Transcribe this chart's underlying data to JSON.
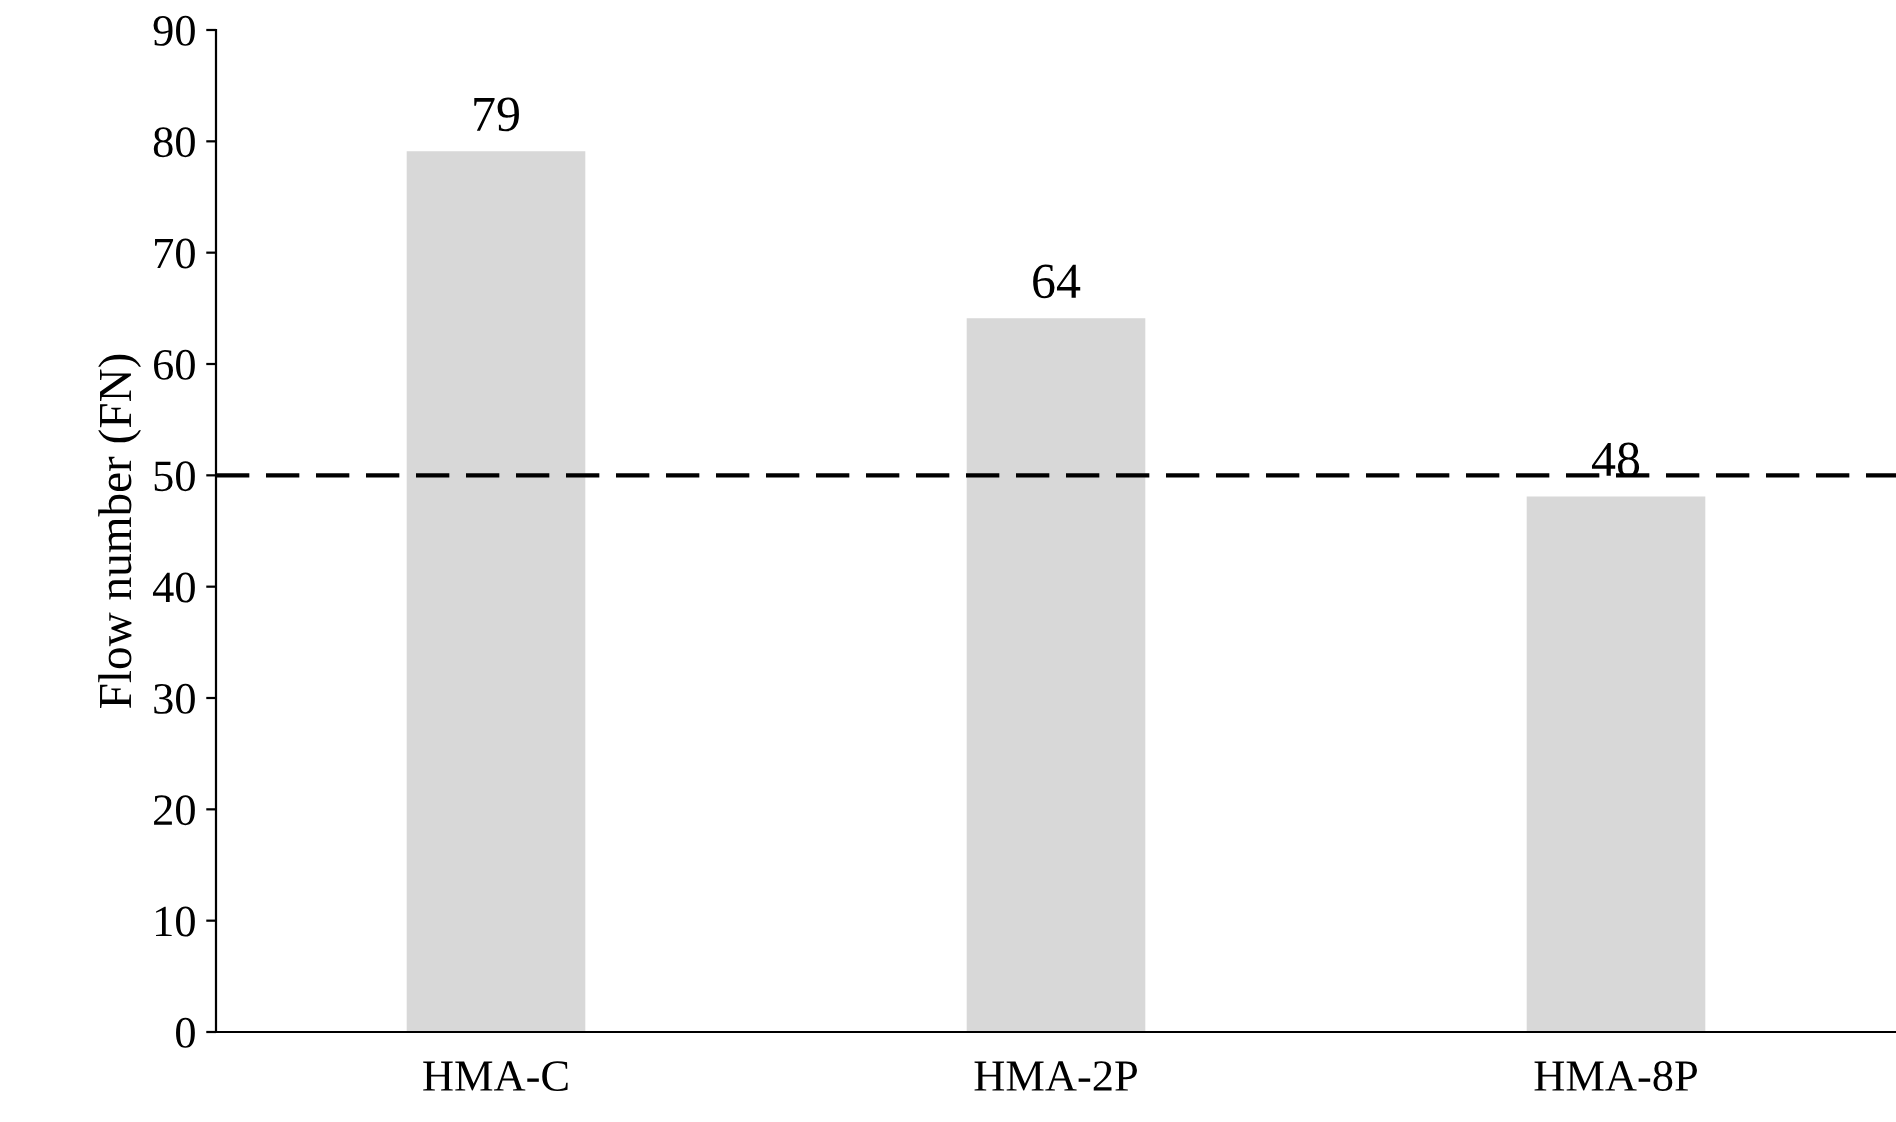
{
  "chart_data": {
    "type": "bar",
    "ylabel": "Flow number (FN)",
    "categories": [
      "HMA-C",
      "HMA-2P",
      "HMA-8P"
    ],
    "values": [
      79,
      64,
      48
    ],
    "color": "#d8d8d8",
    "ylim": [
      0,
      90
    ],
    "yticks": [
      0,
      10,
      20,
      30,
      40,
      50,
      60,
      70,
      80,
      90
    ],
    "ref_lines": [
      {
        "axis": "y",
        "value": 50,
        "color": "#000000",
        "line_style": "dashed"
      }
    ],
    "data_labels": true,
    "grid": false
  }
}
